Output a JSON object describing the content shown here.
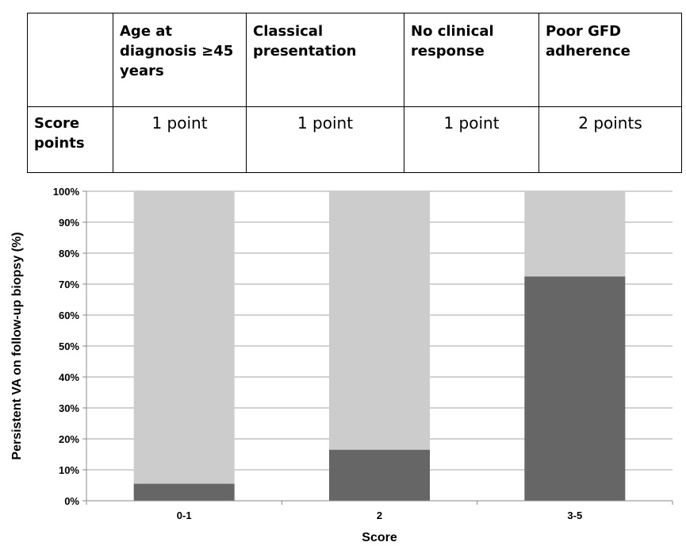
{
  "table": {
    "headers": [
      "",
      "Age at diagnosis  ≥45 years",
      "Classical presentation",
      "No clinical response",
      "Poor GFD adherence"
    ],
    "row_label": "Score points",
    "points": [
      "1 point",
      "1 point",
      "1 point",
      "2 points"
    ]
  },
  "chart_data": {
    "type": "bar",
    "stacked": true,
    "percent": true,
    "categories": [
      "0-1",
      "2",
      "3-5"
    ],
    "series": [
      {
        "values": [
          5.5,
          16.5,
          72.5
        ],
        "color": "#666666"
      },
      {
        "values": [
          94.5,
          83.5,
          27.5
        ],
        "color": "#cccccc"
      }
    ],
    "xlabel": "Score",
    "ylabel": "Persistent VA on follow-up biopsy (%)",
    "ylim": [
      0,
      100
    ],
    "yticks": [
      "0%",
      "10%",
      "20%",
      "30%",
      "40%",
      "50%",
      "60%",
      "70%",
      "80%",
      "90%",
      "100%"
    ],
    "grid": true
  }
}
